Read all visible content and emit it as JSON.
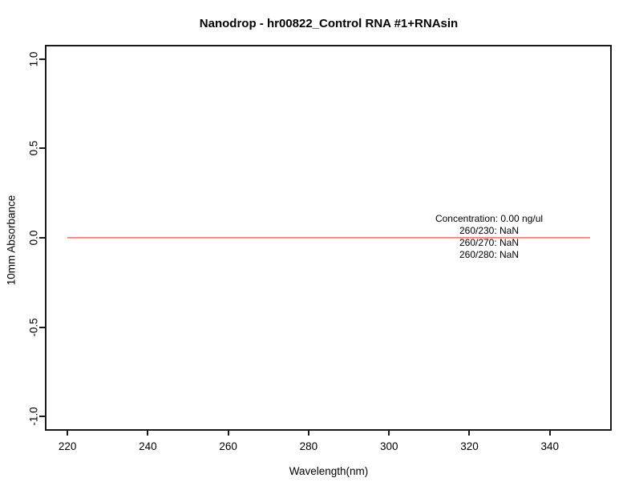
{
  "chart_data": {
    "type": "line",
    "title": "Nanodrop - hr00822_Control RNA #1+RNAsin",
    "xlabel": "Wavelength(nm)",
    "ylabel": "10mm Absorbance",
    "xlim": [
      214.4,
      355.4
    ],
    "ylim": [
      -1.08,
      1.08
    ],
    "grid": false,
    "legend": "none",
    "x_ticks": [
      {
        "value": 220,
        "label": "220"
      },
      {
        "value": 240,
        "label": "240"
      },
      {
        "value": 260,
        "label": "260"
      },
      {
        "value": 280,
        "label": "280"
      },
      {
        "value": 300,
        "label": "300"
      },
      {
        "value": 320,
        "label": "320"
      },
      {
        "value": 340,
        "label": "340"
      }
    ],
    "y_ticks": [
      {
        "value": -1.0,
        "label": "-1.0"
      },
      {
        "value": -0.5,
        "label": "-0.5"
      },
      {
        "value": 0.0,
        "label": "0.0"
      },
      {
        "value": 0.5,
        "label": "0.5"
      },
      {
        "value": 1.0,
        "label": "1.0"
      }
    ],
    "series": [
      {
        "name": "absorbance-spectrum",
        "color": "#fa6a6a",
        "color_light": "#ffb0b0",
        "x": [
          220,
          350
        ],
        "y": [
          0.0,
          0.0
        ]
      }
    ],
    "annotation": {
      "lines": [
        "Concentration: 0.00 ng/ul",
        "260/230: NaN",
        "260/270: NaN",
        "260/280: NaN"
      ]
    },
    "colors": {
      "axis": "#1a1a1a",
      "text": "#000000",
      "background": "#ffffff"
    }
  }
}
